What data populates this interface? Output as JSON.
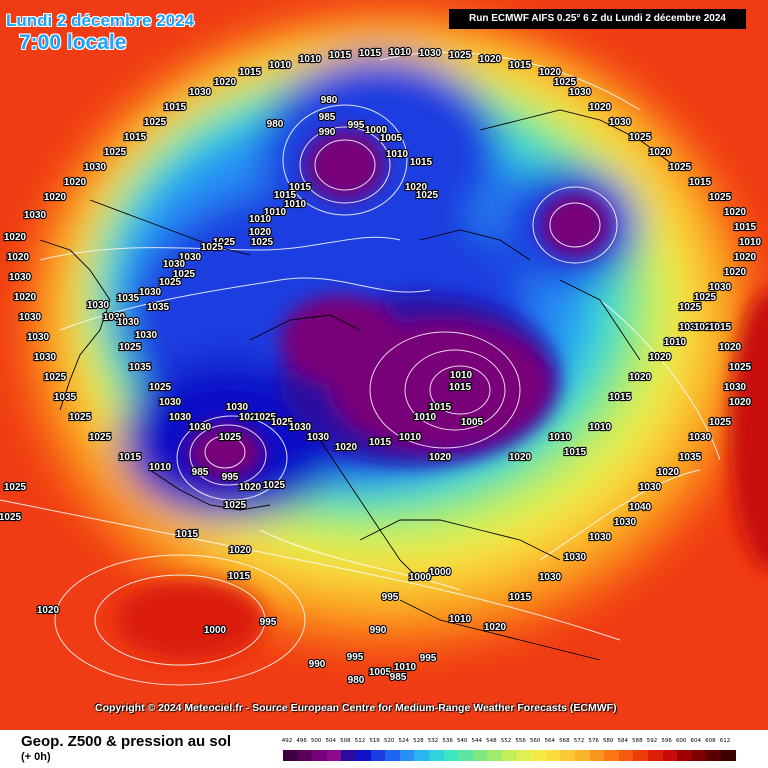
{
  "header": {
    "date": "Lundi 2 décembre 2024",
    "time": "7:00 locale",
    "run": "Run ECMWF AIFS 0.25° 6 Z du Lundi 2 décembre 2024"
  },
  "copyright": "Copyright © 2024 Meteociel.fr - Source European Centre for Medium-Range Weather Forecasts (ECMWF)",
  "footer": {
    "title": "Geop. Z500 & pression au sol",
    "subtitle": "(+ 0h)"
  },
  "legend": {
    "ticks": [
      "492",
      "496",
      "500",
      "504",
      "508",
      "512",
      "516",
      "520",
      "524",
      "528",
      "532",
      "536",
      "540",
      "544",
      "548",
      "552",
      "556",
      "560",
      "564",
      "568",
      "572",
      "576",
      "580",
      "584",
      "588",
      "592",
      "596",
      "600",
      "604",
      "608",
      "612"
    ],
    "colors": [
      "#3c003c",
      "#5a005a",
      "#780078",
      "#8c0a8c",
      "#2b0aa0",
      "#1010c8",
      "#1a3ce0",
      "#1e64f0",
      "#2890f5",
      "#2ab4f0",
      "#30d2dc",
      "#3ce6c0",
      "#5ae6a0",
      "#80e680",
      "#a0eb6e",
      "#c3f05a",
      "#e1f050",
      "#f5eb46",
      "#fadc3c",
      "#fac832",
      "#fab428",
      "#fa961e",
      "#fa7814",
      "#f55a0f",
      "#eb3c0a",
      "#dc1e0a",
      "#c80a0a",
      "#a00000",
      "#7d0000",
      "#5a0000",
      "#3c0000"
    ]
  },
  "isobars": [
    "980",
    "985",
    "980",
    "990",
    "995",
    "1000",
    "1005",
    "1010",
    "1015",
    "1020",
    "1025",
    "1015",
    "1015",
    "1010",
    "1010",
    "1010",
    "1020",
    "1025",
    "1025",
    "1025",
    "1030",
    "1030",
    "1025",
    "1025",
    "1030",
    "1035",
    "1035",
    "1030",
    "1030",
    "1030",
    "1030",
    "1025",
    "1035",
    "1025",
    "1030",
    "1030",
    "1030",
    "1025",
    "1030",
    "1020",
    "1025",
    "1025",
    "1030",
    "1030",
    "1020",
    "1015",
    "1010",
    "1010",
    "1015",
    "1015",
    "1010",
    "1005",
    "1020",
    "1020",
    "1015",
    "1010",
    "1010",
    "1015",
    "1020",
    "1020",
    "1010",
    "1030",
    "1025",
    "1015",
    "1020",
    "1025",
    "1030",
    "1020",
    "1025",
    "1030",
    "1035",
    "1020",
    "1030",
    "1040",
    "1030",
    "1030",
    "1030",
    "1030",
    "1015",
    "1020",
    "1010",
    "1000",
    "1000",
    "995",
    "990",
    "995",
    "1005",
    "1010",
    "995",
    "985",
    "980",
    "990",
    "995",
    "1000",
    "1015",
    "1020",
    "1015",
    "1025",
    "1020",
    "1025",
    "995",
    "985",
    "1010",
    "1015",
    "1025",
    "1025",
    "1035",
    "1025",
    "1030",
    "1030",
    "1030",
    "1020",
    "1030",
    "1020",
    "1020",
    "1030",
    "1020",
    "1020",
    "1030",
    "1025",
    "1015",
    "1025",
    "1015",
    "1030",
    "1020",
    "1015",
    "1010",
    "1010",
    "1015",
    "1015",
    "1010",
    "1030",
    "1025",
    "1020",
    "1015",
    "1020",
    "1025",
    "1030",
    "1020",
    "1030",
    "1025",
    "1020",
    "1025",
    "1015",
    "1025",
    "1020",
    "1015",
    "1010",
    "1020",
    "1020",
    "1030",
    "1025",
    "1025",
    "1025",
    "1025",
    "1020"
  ]
}
